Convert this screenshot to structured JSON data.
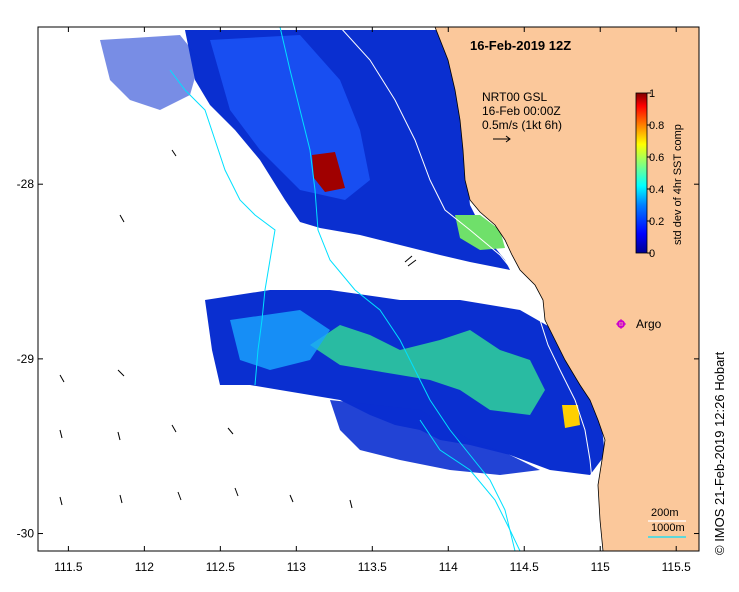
{
  "map": {
    "title": "16-Feb-2019 12Z",
    "velocity_legend": {
      "line1": "NRT00 GSL",
      "line2": "16-Feb 00:00Z",
      "line3": "0.5m/s (1kt 6h)"
    },
    "argo_label": "Argo",
    "depth_legend": {
      "label_200": "200m",
      "label_1000": "1000m"
    },
    "credit": "© IMOS 21-Feb-2019 12:26 Hobart",
    "colors": {
      "land": "#fbc89b",
      "isobath_200": "#ffffff",
      "isobath_1000": "#00e0ff",
      "argo": "#cc00cc"
    }
  },
  "colorbar": {
    "label": "std dev of 4hr SST comp",
    "ticks": [
      "1",
      "0.8",
      "0.6",
      "0.4",
      "0.2",
      "0"
    ],
    "tick_values": [
      1,
      0.8,
      0.6,
      0.4,
      0.2,
      0
    ],
    "colormap": [
      "#00008f",
      "#0000ff",
      "#0080ff",
      "#00ffff",
      "#80ff80",
      "#ffff00",
      "#ff8000",
      "#ff0000",
      "#800000"
    ]
  },
  "axes": {
    "x_ticks": [
      "111.5",
      "112",
      "112.5",
      "113",
      "113.5",
      "114",
      "114.5",
      "115",
      "115.5"
    ],
    "y_ticks": [
      "-28",
      "-29",
      "-30"
    ],
    "x_range": [
      111.3,
      115.65
    ],
    "y_range": [
      -30.1,
      -27.1
    ]
  }
}
